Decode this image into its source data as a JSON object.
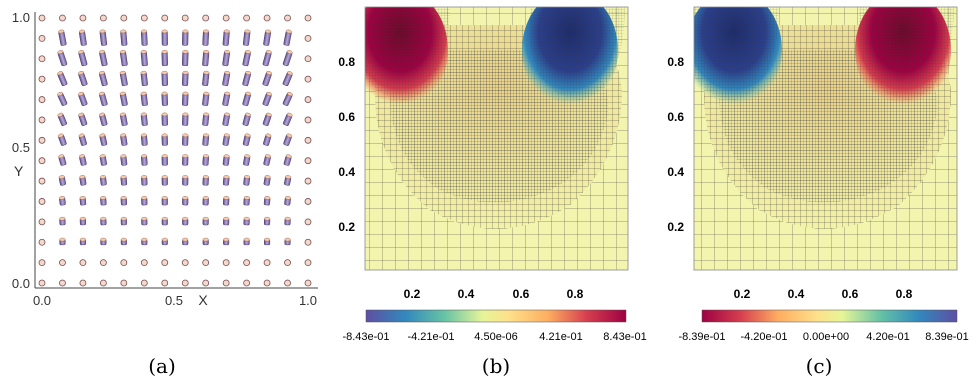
{
  "panels": {
    "a": {
      "caption": "(a)",
      "x_axis": {
        "label": "X",
        "ticks": [
          "0.0",
          "0.5",
          "1.0"
        ]
      },
      "y_axis": {
        "label": "Y",
        "ticks": [
          "1.0",
          "0.5",
          "0.0"
        ]
      }
    },
    "b": {
      "caption": "(b)",
      "x_ticks": [
        "0.2",
        "0.4",
        "0.6",
        "0.8"
      ],
      "y_ticks": [
        "0.8",
        "0.6",
        "0.4",
        "0.2"
      ],
      "colorbar_ticks": [
        "-8.43e-01",
        "-4.21e-01",
        "4.50e-06",
        "4.21e-01",
        "8.43e-01"
      ]
    },
    "c": {
      "caption": "(c)",
      "x_ticks": [
        "0.2",
        "0.4",
        "0.6",
        "0.8"
      ],
      "y_ticks": [
        "0.8",
        "0.6",
        "0.4",
        "0.2"
      ],
      "colorbar_ticks": [
        "-8.39e-01",
        "-4.20e-01",
        "0.00e+00",
        "4.20e-01",
        "8.39e-01"
      ]
    }
  },
  "colors": {
    "negative_extreme": "#2b3f8c",
    "positive_extreme": "#9e0142",
    "neutral": "#f4f7b0",
    "mesh_line": "#3a3a3a"
  }
}
